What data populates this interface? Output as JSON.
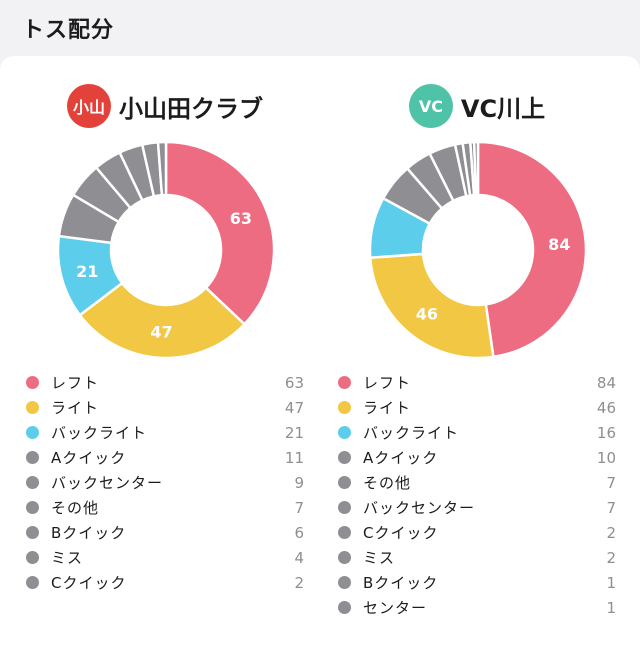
{
  "header": {
    "title": "トス配分"
  },
  "colors": {
    "left": "#ee6c81",
    "right": "#f2c744",
    "back": "#5dcdec",
    "other": "#8e8e93"
  },
  "teams": [
    {
      "name": "小山田クラブ",
      "avatar_text": "小山",
      "avatar_color": "#e2423a"
    },
    {
      "name": "VC川上",
      "avatar_text": "VC",
      "avatar_color": "#4fc3a7"
    }
  ],
  "chart_data": [
    {
      "type": "pie",
      "title": "",
      "categories": [
        "レフト",
        "ライト",
        "バックライト",
        "Aクイック",
        "バックセンター",
        "その他",
        "Bクイック",
        "ミス",
        "Cクイック"
      ],
      "values": [
        63,
        47,
        21,
        11,
        9,
        7,
        6,
        4,
        2
      ],
      "colors": [
        "#ee6c81",
        "#f2c744",
        "#5dcdec",
        "#8e8e93",
        "#8e8e93",
        "#8e8e93",
        "#8e8e93",
        "#8e8e93",
        "#8e8e93"
      ],
      "data_labels": [
        "63",
        "47",
        "21",
        "",
        "",
        "",
        "",
        "",
        ""
      ]
    },
    {
      "type": "pie",
      "title": "",
      "categories": [
        "レフト",
        "ライト",
        "バックライト",
        "Aクイック",
        "その他",
        "バックセンター",
        "Cクイック",
        "ミス",
        "Bクイック",
        "センター"
      ],
      "values": [
        84,
        46,
        16,
        10,
        7,
        7,
        2,
        2,
        1,
        1
      ],
      "colors": [
        "#ee6c81",
        "#f2c744",
        "#5dcdec",
        "#8e8e93",
        "#8e8e93",
        "#8e8e93",
        "#8e8e93",
        "#8e8e93",
        "#8e8e93",
        "#8e8e93"
      ],
      "data_labels": [
        "84",
        "46",
        "",
        "",
        "",
        "",
        "",
        "",
        "",
        ""
      ]
    }
  ]
}
